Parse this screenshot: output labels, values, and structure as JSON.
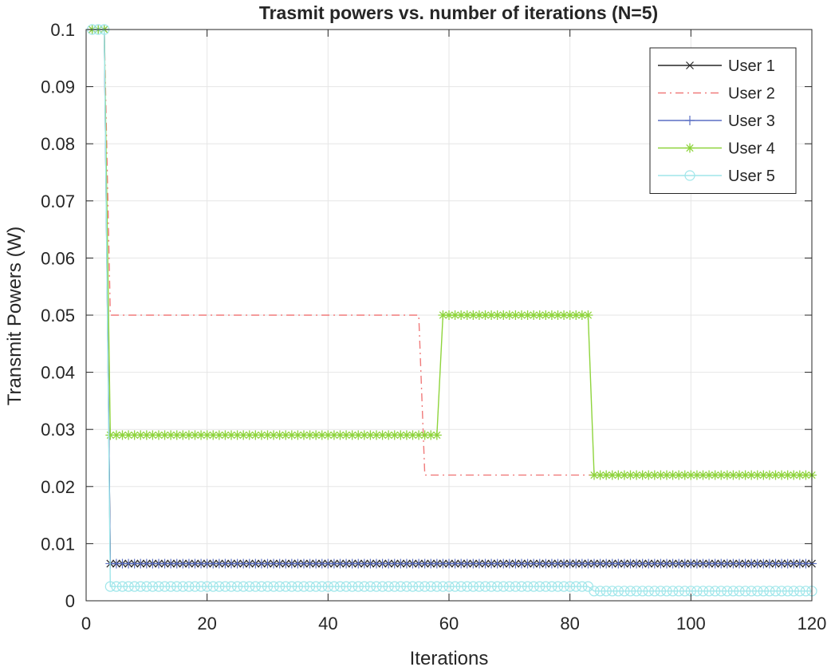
{
  "chart_data": {
    "type": "line",
    "title": "Trasmit powers vs. number of iterations (N=5)",
    "xlabel": "Iterations",
    "ylabel": "Transmit Powers (W)",
    "xlim": [
      0,
      120
    ],
    "ylim": [
      0,
      0.1
    ],
    "xticks": [
      "0",
      "20",
      "40",
      "60",
      "80",
      "100",
      "120"
    ],
    "yticks": [
      "0",
      "0.01",
      "0.02",
      "0.03",
      "0.04",
      "0.05",
      "0.06",
      "0.07",
      "0.08",
      "0.09",
      "0.1"
    ],
    "grid": true,
    "legend_position": "top-right",
    "series": [
      {
        "name": "User 1",
        "color": "#262626",
        "line_style": "solid",
        "marker": "x",
        "segments": [
          {
            "x_start": 1,
            "x_end": 3,
            "y": 0.1
          },
          {
            "x_start": 4,
            "x_end": 120,
            "y": 0.0065
          }
        ]
      },
      {
        "name": "User 2",
        "color": "#f07a7a",
        "line_style": "dashdot",
        "marker": "none",
        "segments": [
          {
            "x_start": 1,
            "x_end": 3,
            "y": 0.1
          },
          {
            "x_start": 4,
            "x_end": 55,
            "y": 0.05
          },
          {
            "x_start": 56,
            "x_end": 120,
            "y": 0.022
          }
        ]
      },
      {
        "name": "User 3",
        "color": "#5a6fc4",
        "line_style": "solid",
        "marker": "+",
        "segments": [
          {
            "x_start": 1,
            "x_end": 3,
            "y": 0.1
          },
          {
            "x_start": 4,
            "x_end": 120,
            "y": 0.0065
          }
        ]
      },
      {
        "name": "User 4",
        "color": "#8ed43c",
        "line_style": "solid",
        "marker": "*",
        "segments": [
          {
            "x_start": 1,
            "x_end": 3,
            "y": 0.1
          },
          {
            "x_start": 4,
            "x_end": 58,
            "y": 0.029
          },
          {
            "x_start": 59,
            "x_end": 83,
            "y": 0.05
          },
          {
            "x_start": 84,
            "x_end": 120,
            "y": 0.022
          }
        ]
      },
      {
        "name": "User 5",
        "color": "#9fe6ea",
        "line_style": "solid",
        "marker": "o",
        "segments": [
          {
            "x_start": 1,
            "x_end": 3,
            "y": 0.1
          },
          {
            "x_start": 4,
            "x_end": 83,
            "y": 0.0025
          },
          {
            "x_start": 84,
            "x_end": 120,
            "y": 0.0017
          }
        ]
      }
    ]
  }
}
